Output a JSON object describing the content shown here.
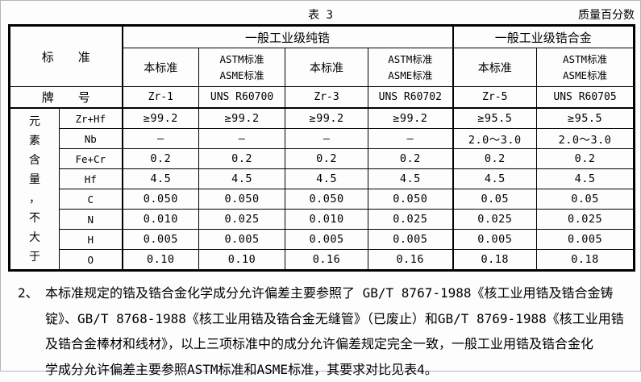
{
  "page": {
    "caption": "表 3",
    "unit_note": "质量百分数"
  },
  "table": {
    "corner_header": "标　　准",
    "grade_label": "牌　　号",
    "group_headers": [
      "一般工业级纯锆",
      "一般工业级锆合金"
    ],
    "column_headers": [
      "本标准",
      "ASTM标准\nASME标准",
      "本标准",
      "ASTM标准\nASME标准",
      "本标准",
      "ASTM标准\nASME标准"
    ],
    "grades": [
      "Zr-1",
      "UNS R60700",
      "Zr-3",
      "UNS R60702",
      "Zr-5",
      "UNS R60705"
    ],
    "row_group_label": "元素含量，不大于",
    "row_group_label_chars": [
      "元",
      "素",
      "含",
      "量",
      "，",
      "不",
      "大",
      "于"
    ],
    "rows": [
      {
        "element": "Zr+Hf",
        "values": [
          "≥99.2",
          "≥99.2",
          "≥99.2",
          "≥99.2",
          "≥95.5",
          "≥95.5"
        ]
      },
      {
        "element": "Nb",
        "values": [
          "—",
          "—",
          "—",
          "—",
          "2.0～3.0",
          "2.0～3.0"
        ]
      },
      {
        "element": "Fe+Cr",
        "values": [
          "0.2",
          "0.2",
          "0.2",
          "0.2",
          "0.2",
          "0.2"
        ]
      },
      {
        "element": "Hf",
        "values": [
          "4.5",
          "4.5",
          "4.5",
          "4.5",
          "4.5",
          "4.5"
        ]
      },
      {
        "element": "C",
        "values": [
          "0.050",
          "0.050",
          "0.050",
          "0.050",
          "0.05",
          "0.05"
        ]
      },
      {
        "element": "N",
        "values": [
          "0.010",
          "0.025",
          "0.010",
          "0.025",
          "0.025",
          "0.025"
        ]
      },
      {
        "element": "H",
        "values": [
          "0.005",
          "0.005",
          "0.005",
          "0.005",
          "0.005",
          "0.005"
        ]
      },
      {
        "element": "O",
        "values": [
          "0.10",
          "0.10",
          "0.16",
          "0.16",
          "0.18",
          "0.18"
        ]
      }
    ]
  },
  "note": {
    "marker": "2、",
    "lines": [
      "本标准规定的锆及锆合金化学成分允许偏差主要参照了 GB/T 8767-1988《核工业用锆及锆合金铸",
      "锭》、GB/T 8768-1988《核工业用锆及锆合金无缝管》（已废止）和GB/T 8769-1988《核工业用锆",
      "及锆合金棒材和线材》，以上三项标准中的成分允许偏差规定完全一致，一般工业用锆及锆合金化",
      "学成分允许偏差主要参照ASTM标准和ASME标准，其要求对比见表4。"
    ]
  }
}
